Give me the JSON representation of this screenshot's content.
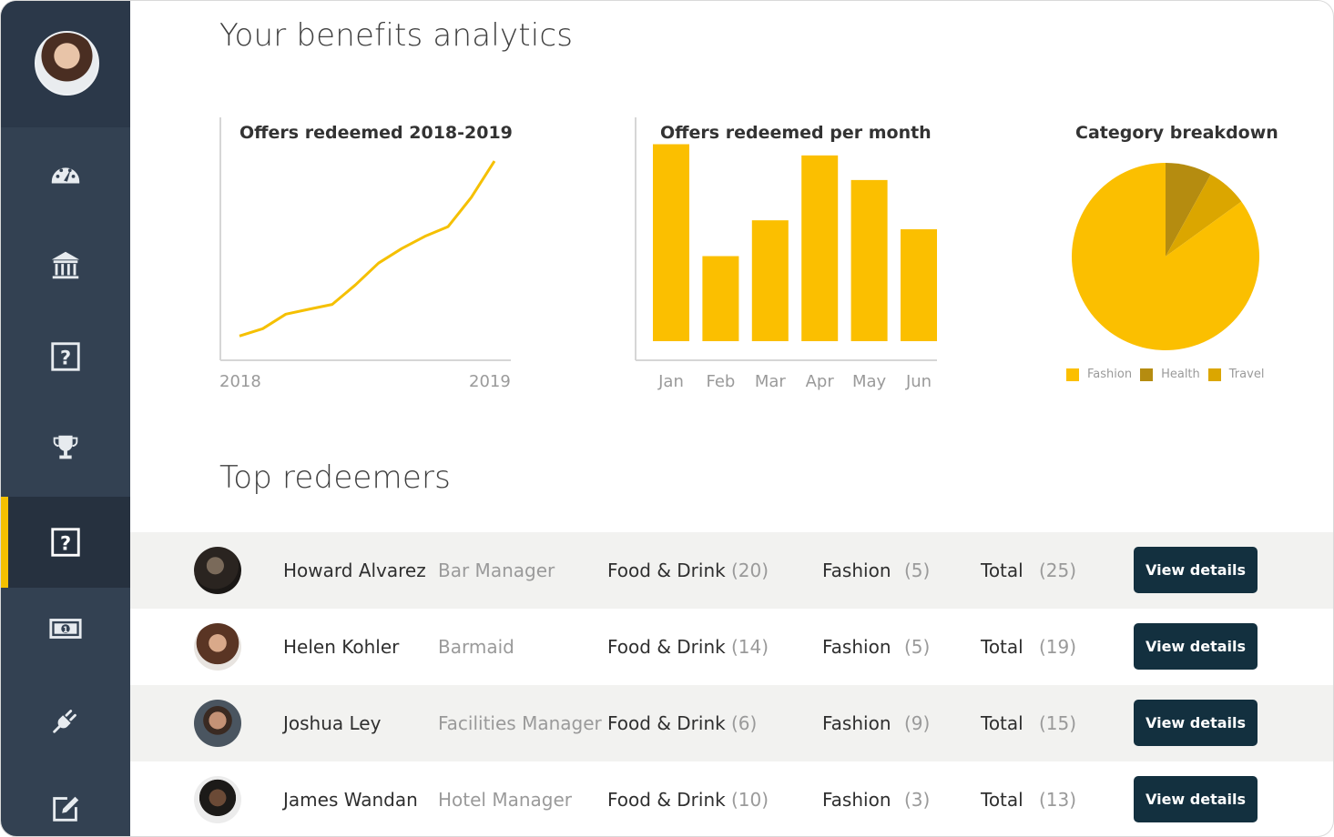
{
  "page": {
    "title": "Your benefits analytics",
    "section_title": "Top redeemers"
  },
  "sidebar": {
    "active_index": 4,
    "items": [
      {
        "icon": "dashboard-icon"
      },
      {
        "icon": "bank-icon"
      },
      {
        "icon": "help-icon"
      },
      {
        "icon": "trophy-icon"
      },
      {
        "icon": "help-icon"
      },
      {
        "icon": "money-icon"
      },
      {
        "icon": "plug-icon"
      },
      {
        "icon": "edit-icon"
      }
    ]
  },
  "colors": {
    "accent": "#f5c000",
    "sidebar": "#334152",
    "button": "#13303f",
    "fashion": "#fbbf00",
    "health": "#b58c10",
    "travel": "#dba600"
  },
  "chart_data": [
    {
      "type": "line",
      "title": "Offers redeemed 2018-2019",
      "x_tick_labels": [
        "2018",
        "2019"
      ],
      "x": [
        0,
        1,
        2,
        3,
        4,
        5,
        6,
        7,
        8,
        9,
        10,
        11
      ],
      "values": [
        10,
        13,
        19,
        21,
        23,
        31,
        40,
        46,
        51,
        55,
        67,
        82
      ],
      "ylim": [
        0,
        100
      ]
    },
    {
      "type": "bar",
      "title": "Offers redeemed per month",
      "categories": [
        "Jan",
        "Feb",
        "Mar",
        "Apr",
        "May",
        "Jun"
      ],
      "values": [
        88,
        38,
        54,
        83,
        72,
        50
      ],
      "ylim": [
        0,
        100
      ]
    },
    {
      "type": "pie",
      "title": "Category breakdown",
      "labels": [
        "Fashion",
        "Health",
        "Travel"
      ],
      "values": [
        85,
        8,
        7
      ]
    }
  ],
  "redeemers": [
    {
      "name": "Howard Alvarez",
      "role": "Bar Manager",
      "cat1": "Food & Drink",
      "cat1_count": "(20)",
      "cat2": "Fashion",
      "cat2_count": "(5)",
      "total_label": "Total",
      "total": "(25)",
      "button": "View details"
    },
    {
      "name": "Helen Kohler",
      "role": "Barmaid",
      "cat1": "Food & Drink",
      "cat1_count": "(14)",
      "cat2": "Fashion",
      "cat2_count": "(5)",
      "total_label": "Total",
      "total": "(19)",
      "button": "View details"
    },
    {
      "name": "Joshua Ley",
      "role": "Facilities Manager",
      "cat1": "Food & Drink",
      "cat1_count": "(6)",
      "cat2": "Fashion",
      "cat2_count": "(9)",
      "total_label": "Total",
      "total": "(15)",
      "button": "View details"
    },
    {
      "name": "James Wandan",
      "role": "Hotel Manager",
      "cat1": "Food & Drink",
      "cat1_count": "(10)",
      "cat2": "Fashion",
      "cat2_count": "(3)",
      "total_label": "Total",
      "total": "(13)",
      "button": "View details"
    }
  ]
}
